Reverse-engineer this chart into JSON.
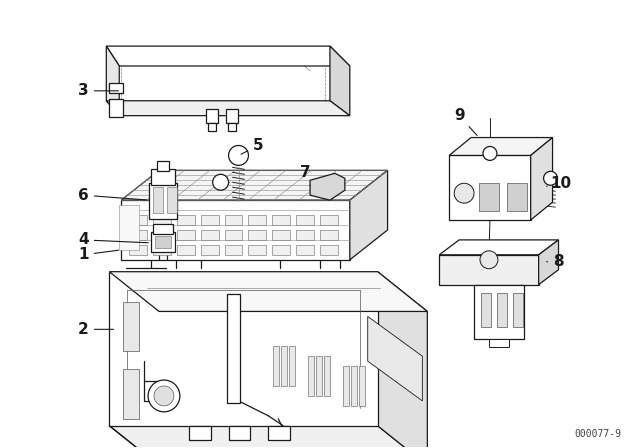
{
  "background_color": "#ffffff",
  "line_color": "#1a1a1a",
  "fig_width": 6.4,
  "fig_height": 4.48,
  "dpi": 100,
  "watermark": "000077-9"
}
